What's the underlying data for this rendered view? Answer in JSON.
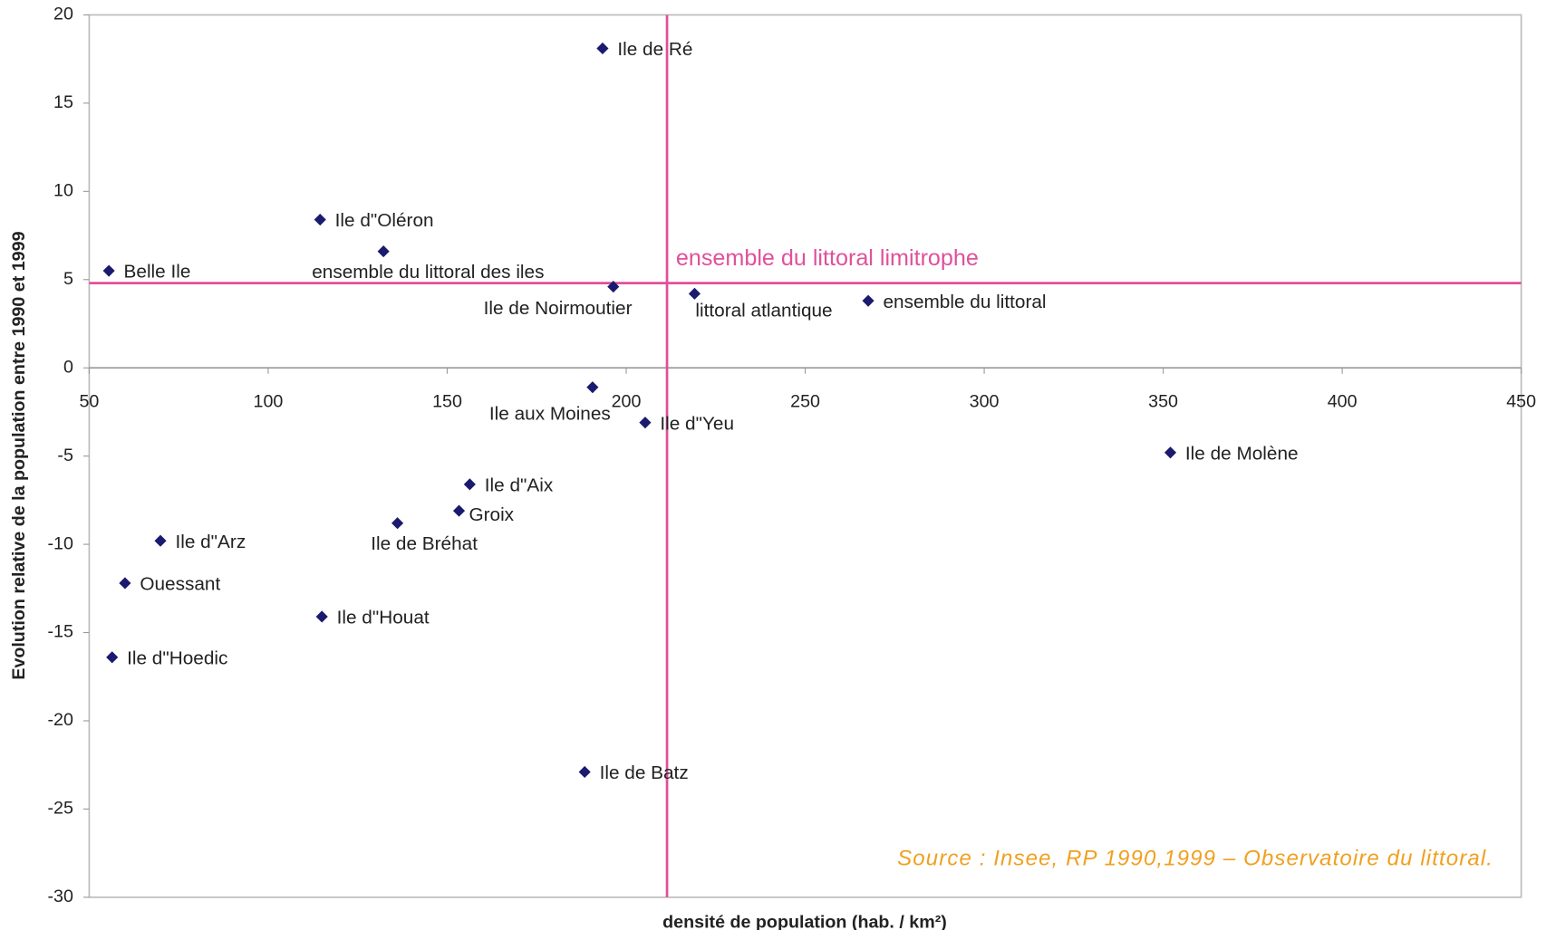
{
  "chart_data": {
    "type": "scatter",
    "x_label": "densité de population (hab. / km²)",
    "y_label": "Evolution relative de la population entre 1990 et 1999",
    "source": "Source : Insee, RP 1990,1999 – Observatoire du littoral.",
    "labels": [
      "Ile de Ré",
      "Ile d\"Oléron",
      "ensemble du littoral des iles",
      "Belle Ile",
      "Ile de Noirmoutier",
      "littoral atlantique",
      "ensemble du littoral",
      "Ile aux Moines",
      "Ile d\"Yeu",
      "Ile de Molène",
      "Ile d\"Aix",
      "Groix",
      "Ile de Bréhat",
      "Ile d\"Arz",
      "Ouessant",
      "Ile d\"Houat",
      "Ile d\"Hoedic",
      "Ile de Batz"
    ],
    "x": [
      193.4,
      114.5,
      132.2,
      55.5,
      196.4,
      219.1,
      267.6,
      190.6,
      205.3,
      352,
      156.3,
      153.3,
      136.1,
      69.9,
      60,
      115,
      56.4,
      188.4
    ],
    "y": [
      18.1,
      8.4,
      6.6,
      5.5,
      4.6,
      4.2,
      3.8,
      -1.1,
      -3.1,
      -4.8,
      -6.6,
      -8.1,
      -8.8,
      -9.8,
      -12.2,
      -14.1,
      -16.4,
      -22.9
    ],
    "color": "#1a1a6e",
    "reference_lines": {
      "x": 211.4,
      "y": 4.8,
      "label": "ensemble du littoral limitrophe",
      "color": "#e0509c"
    },
    "xlim": [
      50,
      450
    ],
    "xticks": [
      50,
      100,
      150,
      200,
      250,
      300,
      350,
      400,
      450
    ],
    "ylim": [
      -30,
      20
    ],
    "yticks": [
      -30,
      -25,
      -20,
      -15,
      -10,
      -5,
      0,
      5,
      10,
      15,
      20
    ]
  }
}
